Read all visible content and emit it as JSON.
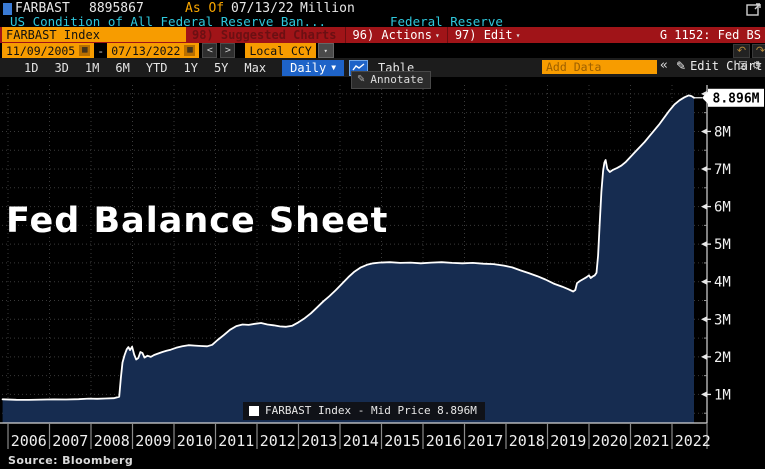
{
  "header": {
    "ticker": "FARBAST",
    "last_value": "8895867",
    "as_of_label": "As Of",
    "as_of_date": "07/13/22",
    "unit": "Million",
    "description": "US Condition of All Federal Reserve Ban...",
    "data_source": "Federal Reserve"
  },
  "toolbar": {
    "security_input": "FARBAST Index",
    "suggested_charts_label": "98) Suggested Charts",
    "actions_label": "96) Actions",
    "edit_label": "97) Edit",
    "chart_id": "G 1152: Fed BS"
  },
  "range_bar": {
    "start_date": "11/09/2005",
    "separator": "-",
    "end_date": "07/13/2022",
    "prev_label": "<",
    "next_label": ">",
    "currency": "Local CCY"
  },
  "period_bar": {
    "tabs": [
      "1D",
      "3D",
      "1M",
      "6M",
      "YTD",
      "1Y",
      "5Y",
      "Max"
    ],
    "frequency": "Daily",
    "table_label": "Table",
    "add_data_placeholder": "Add Data",
    "collapse_glyph": "«",
    "edit_chart_label": "Edit Chart"
  },
  "chart": {
    "annotate_label": "Annotate",
    "title": "Fed Balance Sheet",
    "legend": "FARBAST Index - Mid Price 8.896M",
    "last_value_label": "8.896M",
    "source": "Source:  Bloomberg"
  },
  "colors": {
    "accent_amber": "#f7a500",
    "field_orange": "#f79c00",
    "toolbar_red": "#a01418",
    "link_cyan": "#2fc8dc",
    "button_blue": "#1e63c8",
    "area_fill": "#162c50",
    "line_white": "#ffffff"
  },
  "chart_data": {
    "type": "area",
    "title": "Fed Balance Sheet",
    "series": [
      {
        "name": "FARBAST Index - Mid Price",
        "last_value": 8.896,
        "unit": "M"
      }
    ],
    "x_ticks": [
      "2006",
      "2007",
      "2008",
      "2009",
      "2010",
      "2011",
      "2012",
      "2013",
      "2014",
      "2015",
      "2016",
      "2017",
      "2018",
      "2019",
      "2020",
      "2021",
      "2022"
    ],
    "y_ticks": [
      {
        "value": 1,
        "label": "1M"
      },
      {
        "value": 2,
        "label": "2M"
      },
      {
        "value": 3,
        "label": "3M"
      },
      {
        "value": 4,
        "label": "4M"
      },
      {
        "value": 5,
        "label": "5M"
      },
      {
        "value": 6,
        "label": "6M"
      },
      {
        "value": 7,
        "label": "7M"
      },
      {
        "value": 8,
        "label": "8M"
      }
    ],
    "ylim": [
      0,
      9.25
    ],
    "xlim_years": [
      2005.85,
      2022.85
    ],
    "grid": "dotted, 0.5M horizontal steps, yearly vertical steps",
    "legend_position": "bottom-center",
    "points": [
      [
        2005.87,
        0.87
      ],
      [
        2006.2,
        0.858
      ],
      [
        2006.5,
        0.855
      ],
      [
        2006.8,
        0.862
      ],
      [
        2007.1,
        0.868
      ],
      [
        2007.4,
        0.865
      ],
      [
        2007.7,
        0.872
      ],
      [
        2007.95,
        0.89
      ],
      [
        2008.15,
        0.885
      ],
      [
        2008.35,
        0.892
      ],
      [
        2008.55,
        0.9
      ],
      [
        2008.68,
        0.94
      ],
      [
        2008.72,
        1.45
      ],
      [
        2008.76,
        1.85
      ],
      [
        2008.81,
        2.05
      ],
      [
        2008.86,
        2.2
      ],
      [
        2008.9,
        2.26
      ],
      [
        2008.94,
        2.18
      ],
      [
        2008.99,
        2.27
      ],
      [
        2009.04,
        2.06
      ],
      [
        2009.09,
        1.93
      ],
      [
        2009.14,
        1.97
      ],
      [
        2009.19,
        2.13
      ],
      [
        2009.24,
        2.1
      ],
      [
        2009.29,
        1.98
      ],
      [
        2009.36,
        2.03
      ],
      [
        2009.44,
        2.0
      ],
      [
        2009.52,
        2.05
      ],
      [
        2009.62,
        2.09
      ],
      [
        2009.72,
        2.13
      ],
      [
        2009.82,
        2.16
      ],
      [
        2009.92,
        2.19
      ],
      [
        2010.05,
        2.24
      ],
      [
        2010.2,
        2.28
      ],
      [
        2010.35,
        2.31
      ],
      [
        2010.5,
        2.3
      ],
      [
        2010.65,
        2.29
      ],
      [
        2010.8,
        2.28
      ],
      [
        2010.92,
        2.32
      ],
      [
        2011.05,
        2.45
      ],
      [
        2011.2,
        2.58
      ],
      [
        2011.35,
        2.72
      ],
      [
        2011.5,
        2.82
      ],
      [
        2011.65,
        2.86
      ],
      [
        2011.8,
        2.85
      ],
      [
        2011.95,
        2.88
      ],
      [
        2012.1,
        2.9
      ],
      [
        2012.25,
        2.86
      ],
      [
        2012.4,
        2.84
      ],
      [
        2012.55,
        2.81
      ],
      [
        2012.7,
        2.8
      ],
      [
        2012.85,
        2.83
      ],
      [
        2013.0,
        2.92
      ],
      [
        2013.15,
        3.03
      ],
      [
        2013.3,
        3.16
      ],
      [
        2013.45,
        3.32
      ],
      [
        2013.6,
        3.48
      ],
      [
        2013.75,
        3.62
      ],
      [
        2013.9,
        3.78
      ],
      [
        2014.05,
        3.95
      ],
      [
        2014.2,
        4.12
      ],
      [
        2014.35,
        4.27
      ],
      [
        2014.5,
        4.38
      ],
      [
        2014.65,
        4.45
      ],
      [
        2014.8,
        4.49
      ],
      [
        2014.95,
        4.51
      ],
      [
        2015.2,
        4.52
      ],
      [
        2015.45,
        4.5
      ],
      [
        2015.7,
        4.51
      ],
      [
        2015.95,
        4.49
      ],
      [
        2016.2,
        4.51
      ],
      [
        2016.45,
        4.52
      ],
      [
        2016.7,
        4.5
      ],
      [
        2016.95,
        4.49
      ],
      [
        2017.2,
        4.5
      ],
      [
        2017.45,
        4.48
      ],
      [
        2017.7,
        4.47
      ],
      [
        2017.95,
        4.43
      ],
      [
        2018.15,
        4.38
      ],
      [
        2018.35,
        4.3
      ],
      [
        2018.55,
        4.23
      ],
      [
        2018.75,
        4.15
      ],
      [
        2018.95,
        4.06
      ],
      [
        2019.15,
        3.95
      ],
      [
        2019.35,
        3.87
      ],
      [
        2019.5,
        3.8
      ],
      [
        2019.62,
        3.74
      ],
      [
        2019.67,
        3.78
      ],
      [
        2019.71,
        3.96
      ],
      [
        2019.78,
        4.02
      ],
      [
        2019.86,
        4.07
      ],
      [
        2019.94,
        4.12
      ],
      [
        2020.0,
        4.17
      ],
      [
        2020.04,
        4.1
      ],
      [
        2020.09,
        4.14
      ],
      [
        2020.14,
        4.17
      ],
      [
        2020.18,
        4.24
      ],
      [
        2020.22,
        4.7
      ],
      [
        2020.26,
        5.6
      ],
      [
        2020.3,
        6.4
      ],
      [
        2020.34,
        6.95
      ],
      [
        2020.37,
        7.17
      ],
      [
        2020.4,
        7.24
      ],
      [
        2020.44,
        7.0
      ],
      [
        2020.5,
        6.92
      ],
      [
        2020.58,
        6.98
      ],
      [
        2020.68,
        7.03
      ],
      [
        2020.78,
        7.09
      ],
      [
        2020.88,
        7.18
      ],
      [
        2020.98,
        7.3
      ],
      [
        2021.1,
        7.44
      ],
      [
        2021.22,
        7.58
      ],
      [
        2021.34,
        7.72
      ],
      [
        2021.46,
        7.88
      ],
      [
        2021.58,
        8.04
      ],
      [
        2021.7,
        8.2
      ],
      [
        2021.82,
        8.38
      ],
      [
        2021.94,
        8.56
      ],
      [
        2022.06,
        8.72
      ],
      [
        2022.18,
        8.83
      ],
      [
        2022.3,
        8.91
      ],
      [
        2022.4,
        8.96
      ],
      [
        2022.47,
        8.94
      ],
      [
        2022.53,
        8.896
      ]
    ]
  }
}
